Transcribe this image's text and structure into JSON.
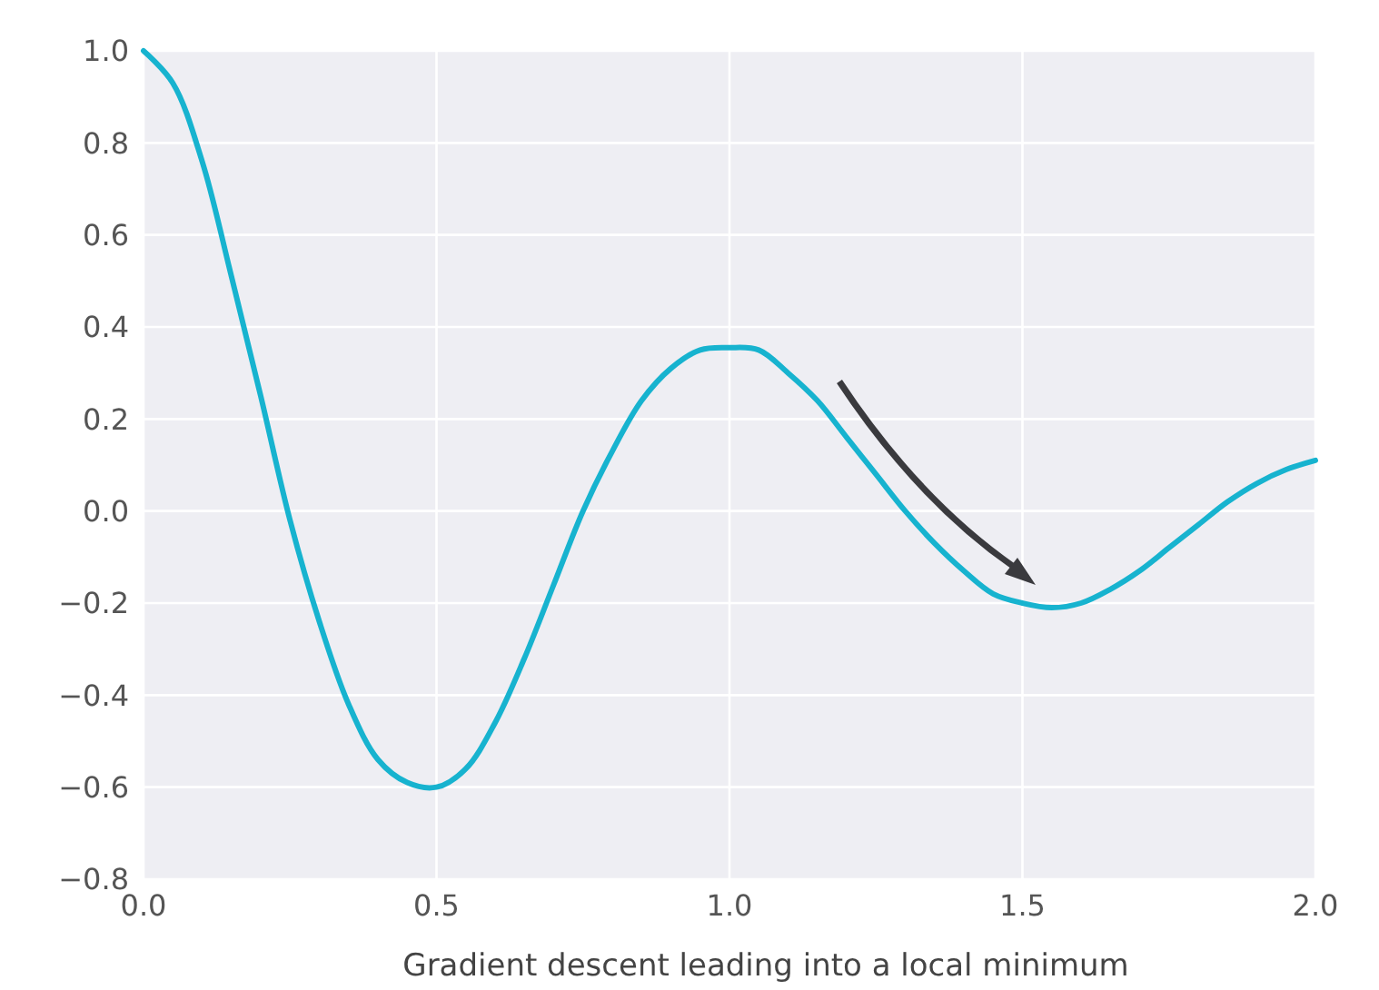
{
  "chart_data": {
    "type": "line",
    "xlabel": "Gradient descent leading into a local minimum",
    "x": [
      0,
      0.05,
      0.1,
      0.15,
      0.2,
      0.25,
      0.3,
      0.35,
      0.4,
      0.45,
      0.5,
      0.55,
      0.6,
      0.65,
      0.7,
      0.75,
      0.8,
      0.85,
      0.9,
      0.95,
      1.0,
      1.05,
      1.1,
      1.15,
      1.2,
      1.25,
      1.3,
      1.35,
      1.4,
      1.45,
      1.5,
      1.55,
      1.6,
      1.65,
      1.7,
      1.75,
      1.8,
      1.85,
      1.9,
      1.95,
      2.0
    ],
    "series": [
      {
        "color": "#17b3cf",
        "values": [
          1.0,
          0.93,
          0.76,
          0.51,
          0.25,
          -0.02,
          -0.24,
          -0.42,
          -0.54,
          -0.59,
          -0.6,
          -0.56,
          -0.46,
          -0.32,
          -0.16,
          0.0,
          0.13,
          0.24,
          0.31,
          0.35,
          0.355,
          0.35,
          0.3,
          0.24,
          0.16,
          0.08,
          0.0,
          -0.07,
          -0.13,
          -0.18,
          -0.2,
          -0.21,
          -0.2,
          -0.17,
          -0.13,
          -0.08,
          -0.03,
          0.02,
          0.06,
          0.09,
          0.11
        ]
      }
    ],
    "xlim": [
      0,
      2
    ],
    "ylim": [
      -0.8,
      1.0
    ],
    "xticks": [
      {
        "value": 0,
        "label": "0.0"
      },
      {
        "value": 0.5,
        "label": "0.5"
      },
      {
        "value": 1,
        "label": "1.0"
      },
      {
        "value": 1.5,
        "label": "1.5"
      },
      {
        "value": 2,
        "label": "2.0"
      }
    ],
    "yticks": [
      {
        "value": -0.8,
        "label": "−0.8"
      },
      {
        "value": -0.6,
        "label": "−0.6"
      },
      {
        "value": -0.4,
        "label": "−0.4"
      },
      {
        "value": -0.2,
        "label": "−0.2"
      },
      {
        "value": 0,
        "label": "0.0"
      },
      {
        "value": 0.2,
        "label": "0.2"
      },
      {
        "value": 0.4,
        "label": "0.4"
      },
      {
        "value": 0.6,
        "label": "0.6"
      },
      {
        "value": 0.8,
        "label": "0.8"
      },
      {
        "value": 1.0,
        "label": "1.0"
      }
    ],
    "grid": true,
    "marker": "none",
    "line_style": "solid"
  }
}
